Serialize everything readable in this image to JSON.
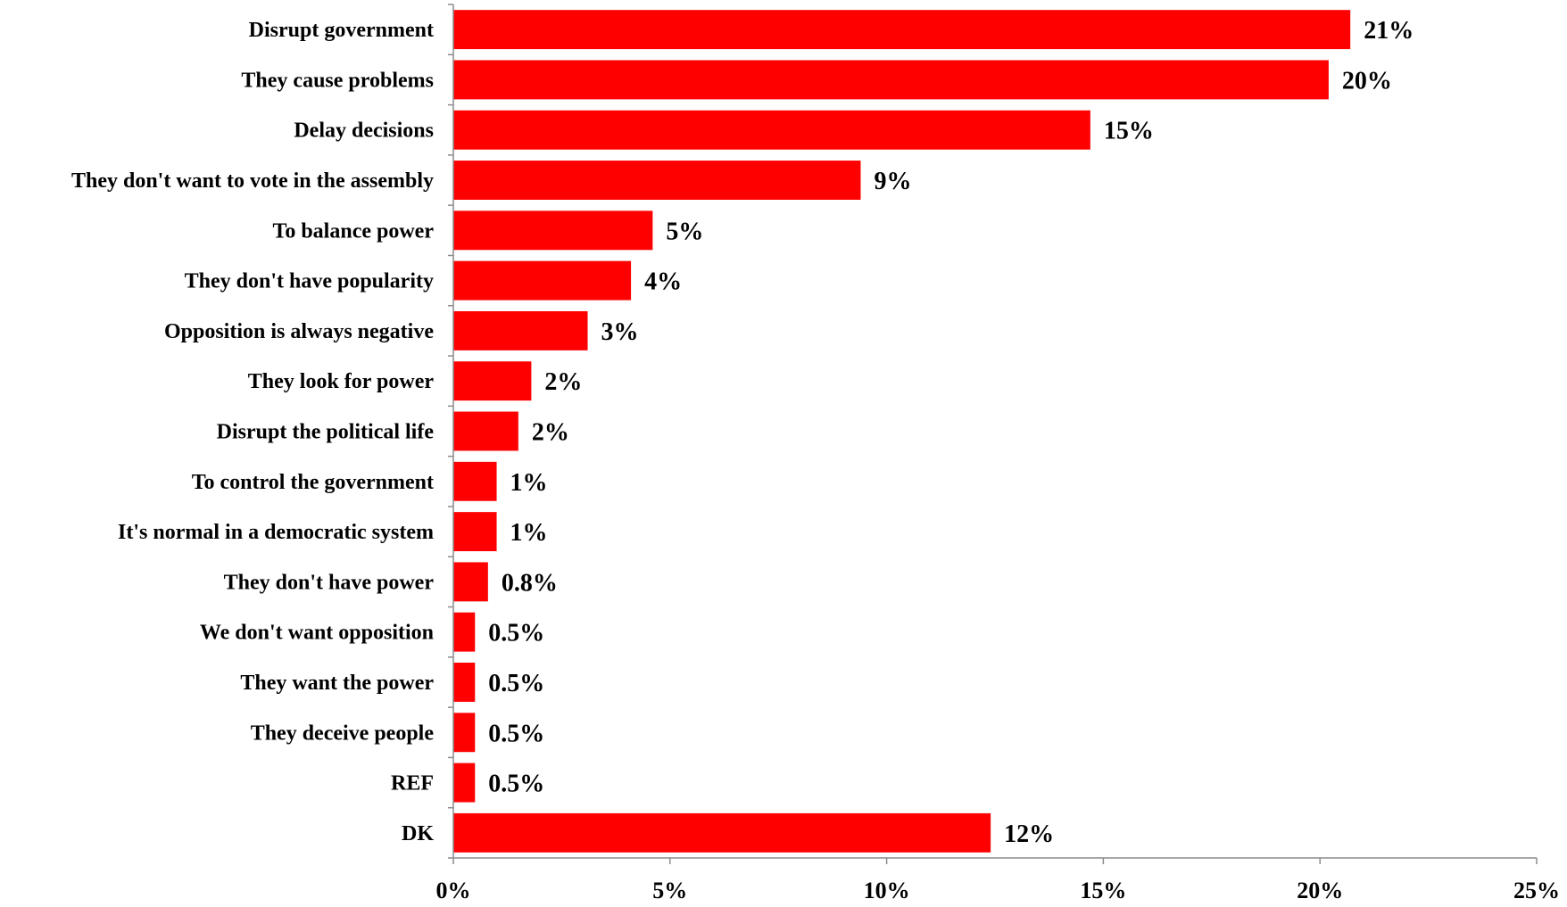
{
  "chart_data": {
    "type": "bar",
    "orientation": "horizontal",
    "categories": [
      "Disrupt government",
      "They cause problems",
      "Delay decisions",
      "They don't want to vote in the assembly",
      "To balance power",
      "They don't have popularity",
      "Opposition is always negative",
      "They look for power",
      "Disrupt the political life",
      "To control the government",
      "It's normal in a democratic system",
      "They don't have power",
      "We don't want opposition",
      "They want the power",
      "They deceive people",
      "REF",
      "DK"
    ],
    "values": [
      20.7,
      20.2,
      14.7,
      9.4,
      4.6,
      4.1,
      3.1,
      1.8,
      1.5,
      1.0,
      1.0,
      0.8,
      0.5,
      0.5,
      0.5,
      0.5,
      12.4
    ],
    "value_labels": [
      "21%",
      "20%",
      "15%",
      "9%",
      "5%",
      "4%",
      "3%",
      "2%",
      "2%",
      "1%",
      "1%",
      "0.8%",
      "0.5%",
      "0.5%",
      "0.5%",
      "0.5%",
      "12%"
    ],
    "xlim": [
      0,
      25
    ],
    "x_ticks": [
      0,
      5,
      10,
      15,
      20,
      25
    ],
    "x_tick_labels": [
      "0%",
      "5%",
      "10%",
      "15%",
      "20%",
      "25%"
    ],
    "title": "",
    "xlabel": "",
    "ylabel": "",
    "grid": false,
    "legend": "none",
    "bar_color": "#ff0000"
  }
}
